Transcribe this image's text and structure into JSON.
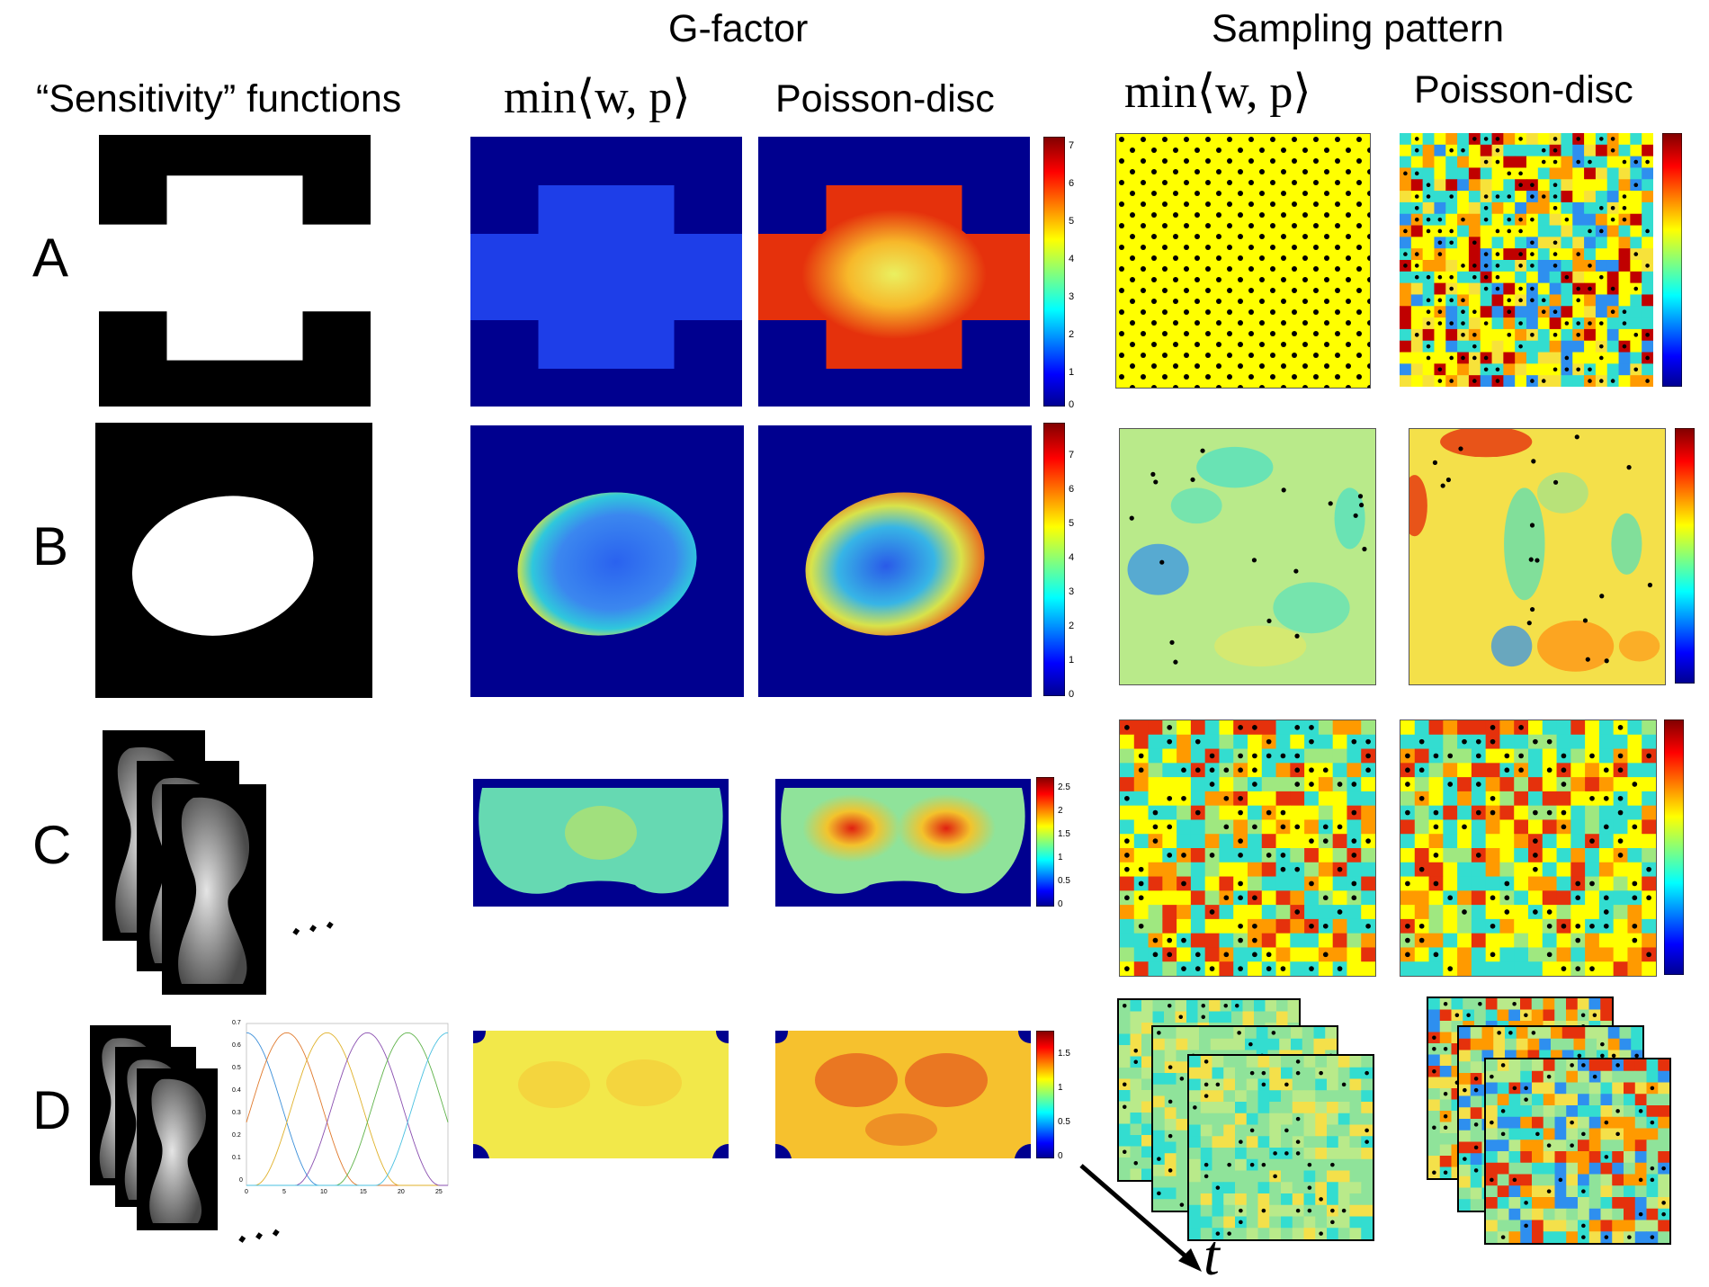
{
  "headers": {
    "gfactor": "G-factor",
    "sampling": "Sampling pattern",
    "sensitivity": "“Sensitivity” functions",
    "minwp": "min⟨w, p⟩",
    "poisson": "Poisson-disc"
  },
  "rows": [
    "A",
    "B",
    "C",
    "D"
  ],
  "colorbars": [
    {
      "ticks": [
        "7",
        "6",
        "5",
        "4",
        "3",
        "2",
        "1",
        "0"
      ]
    },
    {
      "ticks": [
        "7",
        "6",
        "5",
        "4",
        "3",
        "2",
        "1",
        "0"
      ]
    },
    {
      "ticks": [
        "2.5",
        "2",
        "1.5",
        "1",
        "0.5",
        "0"
      ]
    },
    {
      "ticks": [
        "1.5",
        "1",
        "0.5",
        "0"
      ]
    }
  ],
  "inset_plot": {
    "yticks": [
      "0.7",
      "0.6",
      "0.5",
      "0.4",
      "0.3",
      "0.2",
      "0.1",
      "0"
    ],
    "xticks": [
      "0",
      "5",
      "10",
      "15",
      "20",
      "25"
    ]
  },
  "ellipsis": "⋰",
  "time_label": "t",
  "colors": {
    "bg_blue": "#00008f",
    "cross_blue": "#1e3ee8",
    "yellow": "#ffff00",
    "red": "#e52a0a"
  }
}
